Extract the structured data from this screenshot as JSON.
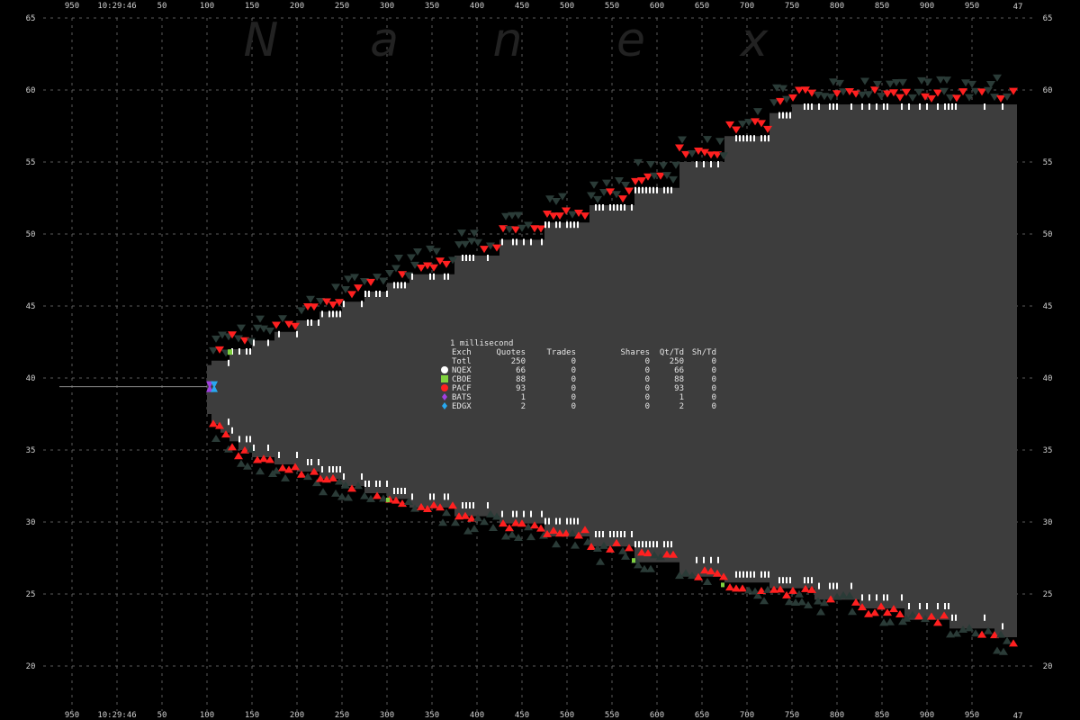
{
  "chart_data": {
    "type": "scatter",
    "watermark": [
      "N",
      "a",
      "n",
      "e",
      "x"
    ],
    "x_ticks": [
      "950",
      "10:29:46",
      "50",
      "100",
      "150",
      "200",
      "250",
      "300",
      "350",
      "400",
      "450",
      "500",
      "550",
      "600",
      "650",
      "700",
      "750",
      "800",
      "850",
      "900",
      "950"
    ],
    "x_corner": "47",
    "xlim": [
      -75,
      975
    ],
    "ylim": [
      19,
      65
    ],
    "y_ticks": [
      "20",
      "25",
      "30",
      "35",
      "40",
      "45",
      "50",
      "55",
      "60",
      "65"
    ],
    "grid": true,
    "prior_line": {
      "x_end": 75,
      "y": 39.4
    },
    "band": {
      "bid": [
        [
          75,
          38.0
        ],
        [
          80,
          37.5
        ],
        [
          90,
          36.8
        ],
        [
          100,
          36.2
        ],
        [
          110,
          35.6
        ],
        [
          125,
          35.0
        ],
        [
          150,
          34.5
        ],
        [
          175,
          34.0
        ],
        [
          200,
          33.5
        ],
        [
          225,
          33.0
        ],
        [
          250,
          32.5
        ],
        [
          275,
          32.0
        ],
        [
          300,
          31.6
        ],
        [
          350,
          31.0
        ],
        [
          400,
          30.4
        ],
        [
          450,
          29.9
        ],
        [
          500,
          29.0
        ],
        [
          550,
          28.3
        ],
        [
          600,
          27.2
        ],
        [
          650,
          26.2
        ],
        [
          700,
          25.8
        ],
        [
          750,
          25.4
        ],
        [
          800,
          24.6
        ],
        [
          850,
          24.0
        ],
        [
          900,
          23.2
        ],
        [
          950,
          22.6
        ],
        [
          975,
          22.0
        ]
      ],
      "ask": [
        [
          75,
          40.9
        ],
        [
          80,
          41.2
        ],
        [
          100,
          42.0
        ],
        [
          125,
          42.6
        ],
        [
          150,
          43.2
        ],
        [
          175,
          44.0
        ],
        [
          200,
          44.6
        ],
        [
          225,
          45.3
        ],
        [
          250,
          46.0
        ],
        [
          275,
          46.6
        ],
        [
          300,
          47.2
        ],
        [
          350,
          48.5
        ],
        [
          400,
          49.6
        ],
        [
          450,
          50.8
        ],
        [
          500,
          52.0
        ],
        [
          550,
          53.2
        ],
        [
          600,
          55.0
        ],
        [
          650,
          56.8
        ],
        [
          700,
          58.4
        ],
        [
          725,
          59.0
        ],
        [
          975,
          59.0
        ]
      ]
    },
    "exchange_colors": {
      "NQEX": "#ffffff",
      "CBOE": "#7fd13f",
      "PACF": "#ff2020",
      "BATS": "#a040e0",
      "EDGX": "#28a8f0"
    },
    "stats": {
      "title": "1 millisecond",
      "headers": [
        "Exch",
        "Quotes",
        "Trades",
        "Shares",
        "Qt/Td",
        "Sh/Td"
      ],
      "rows": [
        {
          "exch": "Totl",
          "quotes": "250",
          "trades": "0",
          "shares": "0",
          "qt_td": "250",
          "sh_td": "0",
          "marker": "",
          "color": ""
        },
        {
          "exch": "NQEX",
          "quotes": "66",
          "trades": "0",
          "shares": "0",
          "qt_td": "66",
          "sh_td": "0",
          "marker": "circle",
          "color": "#ffffff"
        },
        {
          "exch": "CBOE",
          "quotes": "88",
          "trades": "0",
          "shares": "0",
          "qt_td": "88",
          "sh_td": "0",
          "marker": "square",
          "color": "#7fd13f"
        },
        {
          "exch": "PACF",
          "quotes": "93",
          "trades": "0",
          "shares": "0",
          "qt_td": "93",
          "sh_td": "0",
          "marker": "circle",
          "color": "#ff2020"
        },
        {
          "exch": "BATS",
          "quotes": "1",
          "trades": "0",
          "shares": "0",
          "qt_td": "1",
          "sh_td": "0",
          "marker": "diamond",
          "color": "#a040e0"
        },
        {
          "exch": "EDGX",
          "quotes": "2",
          "trades": "0",
          "shares": "0",
          "qt_td": "2",
          "sh_td": "0",
          "marker": "diamond",
          "color": "#28a8f0"
        }
      ]
    }
  }
}
